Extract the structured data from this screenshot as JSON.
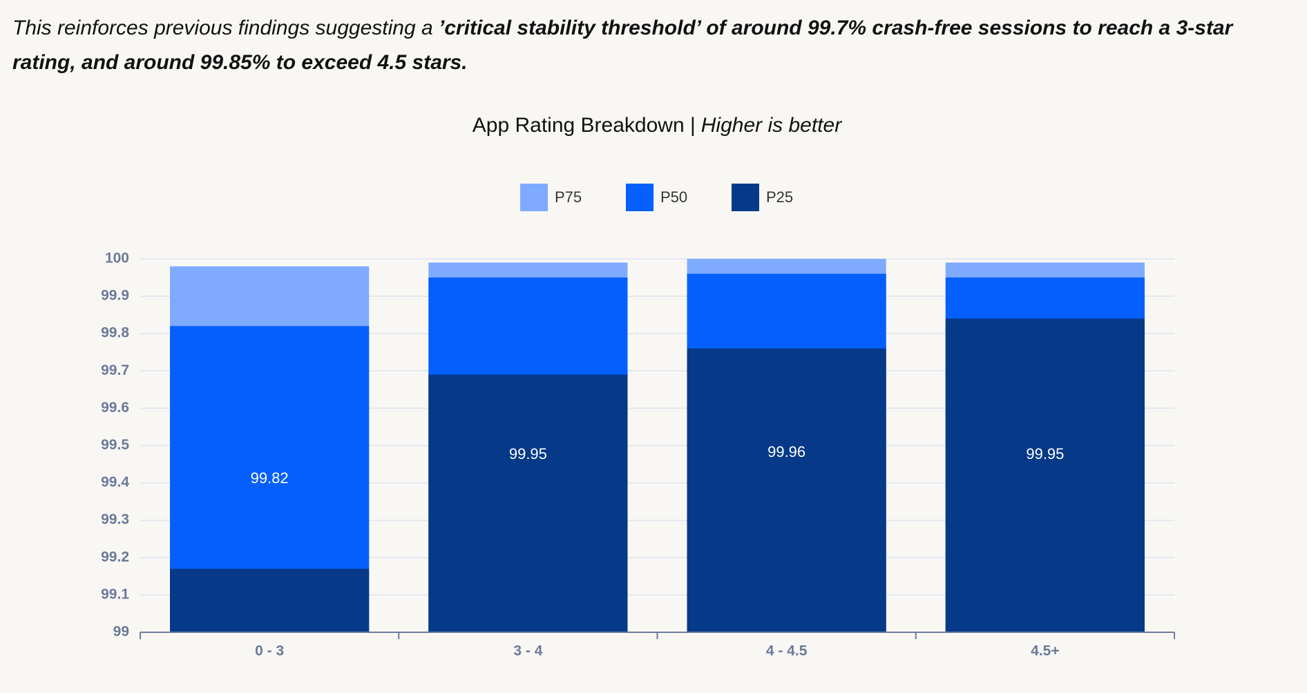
{
  "intro": {
    "text": "This reinforces previous findings suggesting a ",
    "emphasis": "’critical stability threshold’ of around 99.7% crash-free sessions to reach a 3-star rating, and around 99.85% to exceed 4.5 stars."
  },
  "chart_data": {
    "type": "bar",
    "title": "App Rating Breakdown |",
    "subtitle": "Higher is better",
    "categories": [
      "0 - 3",
      "3 - 4",
      "4 - 4.5",
      "4.5+"
    ],
    "series": [
      {
        "name": "P75",
        "color": "#7eabff",
        "values": [
          99.98,
          99.99,
          100.0,
          99.99
        ]
      },
      {
        "name": "P50",
        "color": "#055ffc",
        "values": [
          99.82,
          99.95,
          99.96,
          99.95
        ]
      },
      {
        "name": "P25",
        "color": "#063a88",
        "values": [
          99.17,
          99.69,
          99.76,
          99.84
        ]
      }
    ],
    "data_labels_series": "P50",
    "ylim": [
      99,
      100
    ],
    "yticks": [
      99,
      99.1,
      99.2,
      99.3,
      99.4,
      99.5,
      99.6,
      99.7,
      99.8,
      99.9,
      100
    ],
    "grid": true,
    "legend": "top"
  }
}
